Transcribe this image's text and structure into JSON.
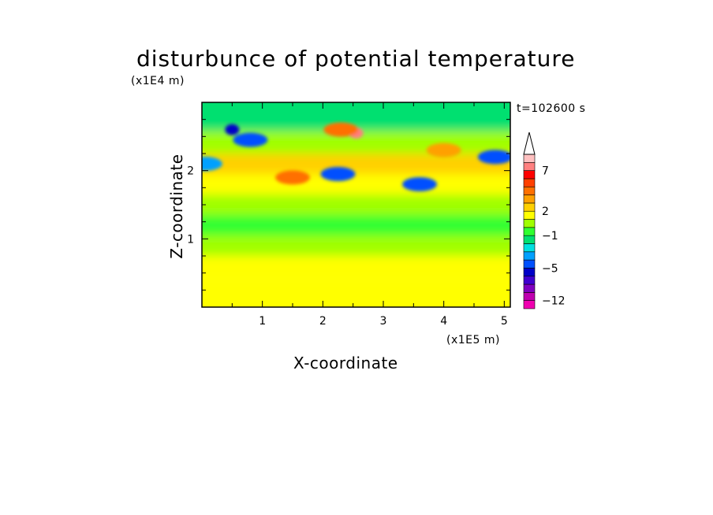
{
  "chart_data": {
    "type": "heatmap",
    "title": "disturbunce of potential temperature",
    "xlabel": "X-coordinate",
    "ylabel": "Z-coordinate",
    "x_scale_label": "(x1E5 m)",
    "y_scale_label": "(x1E4 m)",
    "time_label": "t=102600 s",
    "xlim": [
      0,
      5.1
    ],
    "ylim": [
      0,
      3
    ],
    "x_ticks": [
      "1",
      "2",
      "3",
      "4",
      "5"
    ],
    "y_ticks": [
      "1",
      "2"
    ],
    "colorbar": {
      "levels": [
        -12,
        -10,
        -8,
        -6,
        -5,
        -4,
        -3,
        -2,
        -1,
        0,
        1,
        2,
        3,
        4,
        5,
        6,
        7,
        8,
        9
      ],
      "tick_labels": [
        "7",
        "2",
        "−1",
        "−5",
        "−12"
      ],
      "colors": [
        "#f000b0",
        "#c000b0",
        "#8000c0",
        "#4000d0",
        "#0000c8",
        "#0050ff",
        "#00a0ff",
        "#00e0e0",
        "#00e070",
        "#30ff30",
        "#a0ff00",
        "#ffff00",
        "#ffd000",
        "#ffa000",
        "#ff7000",
        "#ff4000",
        "#ff0000",
        "#ff8080",
        "#ffc0c0"
      ],
      "extend": "max"
    },
    "z_band_means": [
      {
        "z": 0.2,
        "value": 1.2
      },
      {
        "z": 0.6,
        "value": 1.0
      },
      {
        "z": 0.9,
        "value": 0.3
      },
      {
        "z": 1.2,
        "value": -0.5
      },
      {
        "z": 1.5,
        "value": 0.3
      },
      {
        "z": 1.8,
        "value": 1.8
      },
      {
        "z": 2.1,
        "value": 2.0
      },
      {
        "z": 2.4,
        "value": 0.5
      },
      {
        "z": 2.75,
        "value": -1.5
      }
    ],
    "features": [
      {
        "x": 2.55,
        "z": 2.55,
        "value": 7
      },
      {
        "x": 2.3,
        "z": 2.6,
        "value": 4
      },
      {
        "x": 0.8,
        "z": 2.45,
        "value": -5
      },
      {
        "x": 0.5,
        "z": 2.6,
        "value": -6
      },
      {
        "x": 2.25,
        "z": 1.95,
        "value": -5
      },
      {
        "x": 3.6,
        "z": 1.8,
        "value": -5
      },
      {
        "x": 4.85,
        "z": 2.2,
        "value": -5
      },
      {
        "x": 0.05,
        "z": 2.1,
        "value": -4
      },
      {
        "x": 1.5,
        "z": 1.9,
        "value": 4
      },
      {
        "x": 4.0,
        "z": 2.3,
        "value": 3
      }
    ]
  }
}
